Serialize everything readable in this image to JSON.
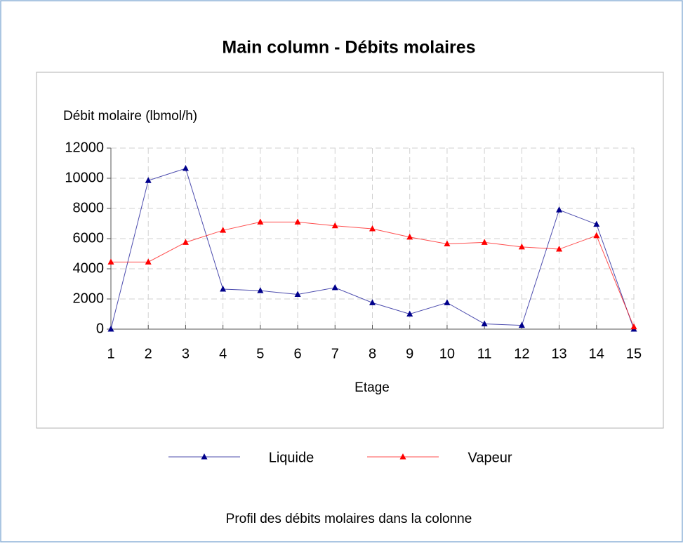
{
  "chart_data": {
    "type": "line",
    "title": "Main column - Débits molaires",
    "y_label": "Débit molaire (lbmol/h)",
    "x_label": "Etage",
    "caption": "Profil des débits molaires dans la colonne",
    "x": [
      1,
      2,
      3,
      4,
      5,
      6,
      7,
      8,
      9,
      10,
      11,
      12,
      13,
      14,
      15
    ],
    "series": [
      {
        "name": "Liquide",
        "color": "#00008b",
        "values": [
          0,
          9850,
          10650,
          2650,
          2550,
          2300,
          2750,
          1750,
          1000,
          1750,
          350,
          250,
          7900,
          6950,
          0
        ]
      },
      {
        "name": "Vapeur",
        "color": "#ff0000",
        "values": [
          4450,
          4450,
          5750,
          6550,
          7100,
          7100,
          6850,
          6650,
          6100,
          5650,
          5750,
          5450,
          5300,
          6200,
          150
        ]
      }
    ],
    "xlim": [
      1,
      15
    ],
    "xticks": [
      1,
      2,
      3,
      4,
      5,
      6,
      7,
      8,
      9,
      10,
      11,
      12,
      13,
      14,
      15
    ],
    "ylim": [
      0,
      12000
    ],
    "yticks": [
      0,
      2000,
      4000,
      6000,
      8000,
      10000,
      12000
    ],
    "grid": true,
    "legend": "bottom"
  }
}
